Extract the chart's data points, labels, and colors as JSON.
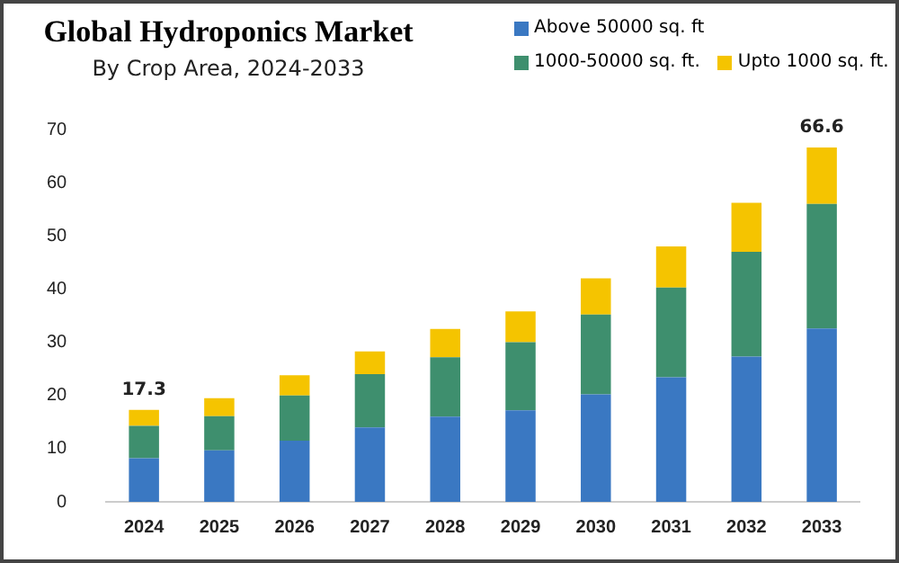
{
  "chart_data": {
    "type": "bar",
    "title": "Global Hydroponics Market",
    "subtitle": "By Crop Area, 2024-2033",
    "categories": [
      "2024",
      "2025",
      "2026",
      "2027",
      "2028",
      "2029",
      "2030",
      "2031",
      "2032",
      "2033"
    ],
    "stacked": true,
    "series": [
      {
        "name": "Above 50000 sq. ft",
        "color": "#3a78c2",
        "values": [
          8.2,
          9.7,
          11.5,
          14,
          16,
          17.2,
          20.2,
          23.4,
          27.3,
          32.6
        ]
      },
      {
        "name": "1000-50000 sq. ft.",
        "color": "#3e8f6e",
        "values": [
          6.1,
          6.4,
          8.5,
          10,
          11.2,
          12.8,
          15,
          16.9,
          19.7,
          23.4
        ]
      },
      {
        "name": "Upto 1000 sq. ft.",
        "color": "#f5c400",
        "values": [
          3,
          3.4,
          3.8,
          4.3,
          5.3,
          5.8,
          6.8,
          7.7,
          9.2,
          10.6
        ]
      }
    ],
    "totals": [
      "17.3",
      null,
      null,
      null,
      null,
      null,
      null,
      null,
      null,
      "66.6"
    ],
    "ylim": [
      0,
      70
    ],
    "yticks": [
      0,
      10,
      20,
      30,
      40,
      50,
      60,
      70
    ],
    "grid": false,
    "legend": "top right"
  }
}
